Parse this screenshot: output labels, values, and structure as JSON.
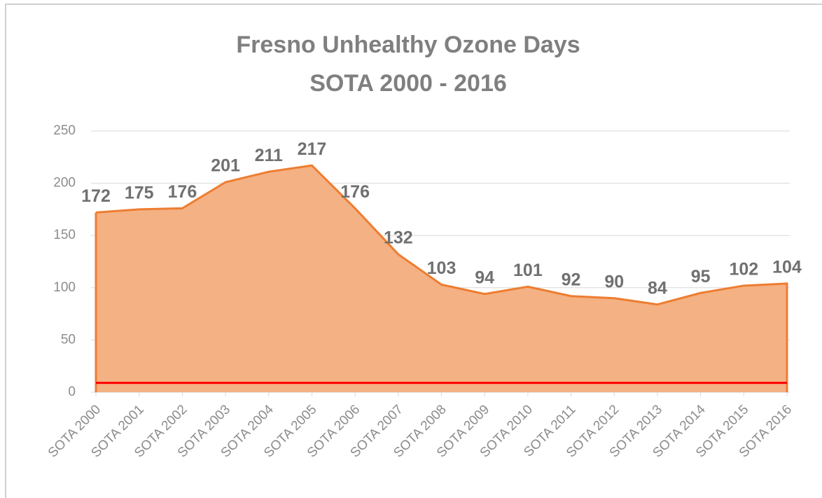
{
  "chart_data": {
    "type": "area",
    "title": "Fresno Unhealthy Ozone Days",
    "subtitle": "SOTA 2000 - 2016",
    "categories": [
      "SOTA 2000",
      "SOTA 2001",
      "SOTA 2002",
      "SOTA 2003",
      "SOTA 2004",
      "SOTA 2005",
      "SOTA 2006",
      "SOTA 2007",
      "SOTA 2008",
      "SOTA 2009",
      "SOTA 2010",
      "SOTA 2011",
      "SOTA 2012",
      "SOTA 2013",
      "SOTA 2014",
      "SOTA 2015",
      "SOTA 2016"
    ],
    "series": [
      {
        "type": "area",
        "color": "#ed7d31",
        "fill": "#f4b183",
        "values": [
          172,
          175,
          176,
          201,
          211,
          217,
          176,
          132,
          103,
          94,
          101,
          92,
          90,
          84,
          95,
          102,
          104
        ]
      },
      {
        "type": "line",
        "color": "#ff0000",
        "values": [
          9,
          9,
          9,
          9,
          9,
          9,
          9,
          9,
          9,
          9,
          9,
          9,
          9,
          9,
          9,
          9,
          9
        ]
      }
    ],
    "ylim": [
      0,
      250
    ],
    "yticks": [
      0,
      50,
      100,
      150,
      200,
      250
    ],
    "grid": true
  }
}
